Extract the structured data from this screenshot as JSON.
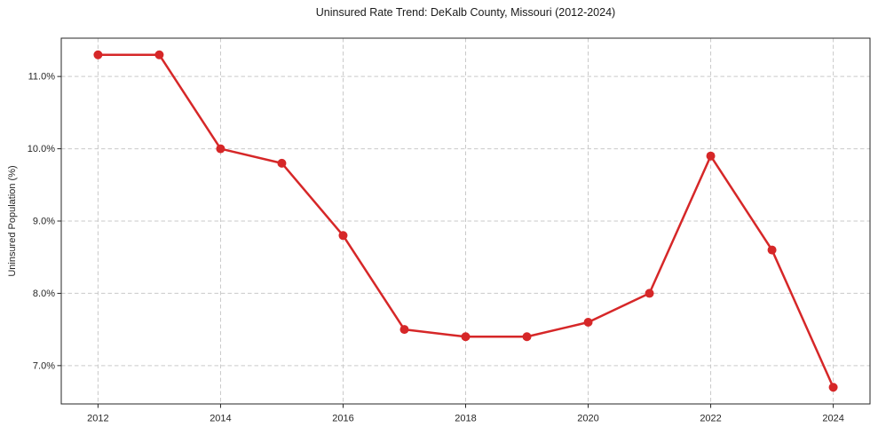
{
  "chart_data": {
    "type": "line",
    "title": "Uninsured Rate Trend: DeKalb County, Missouri (2012-2024)",
    "xlabel": "",
    "ylabel": "Uninsured Population (%)",
    "x": [
      2012,
      2013,
      2014,
      2015,
      2016,
      2017,
      2018,
      2019,
      2020,
      2021,
      2022,
      2023,
      2024
    ],
    "values": [
      11.3,
      11.3,
      10.0,
      9.8,
      8.8,
      7.5,
      7.4,
      7.4,
      7.6,
      8.0,
      9.9,
      8.6,
      6.7
    ],
    "xlim": [
      2011.4,
      2024.6
    ],
    "ylim": [
      6.47,
      11.53
    ],
    "x_ticks": [
      2012,
      2014,
      2016,
      2018,
      2020,
      2022,
      2024
    ],
    "x_tick_labels": [
      "2012",
      "2014",
      "2016",
      "2018",
      "2020",
      "2022",
      "2024"
    ],
    "y_ticks": [
      7.0,
      8.0,
      9.0,
      10.0,
      11.0
    ],
    "y_tick_labels": [
      "7.0%",
      "8.0%",
      "9.0%",
      "10.0%",
      "11.0%"
    ],
    "grid": true,
    "legend": "none",
    "line_color": "#d62728",
    "marker_color": "#d62728",
    "grid_color": "#c9c9c9",
    "spine_color": "#262626",
    "marker_shape": "circle"
  }
}
